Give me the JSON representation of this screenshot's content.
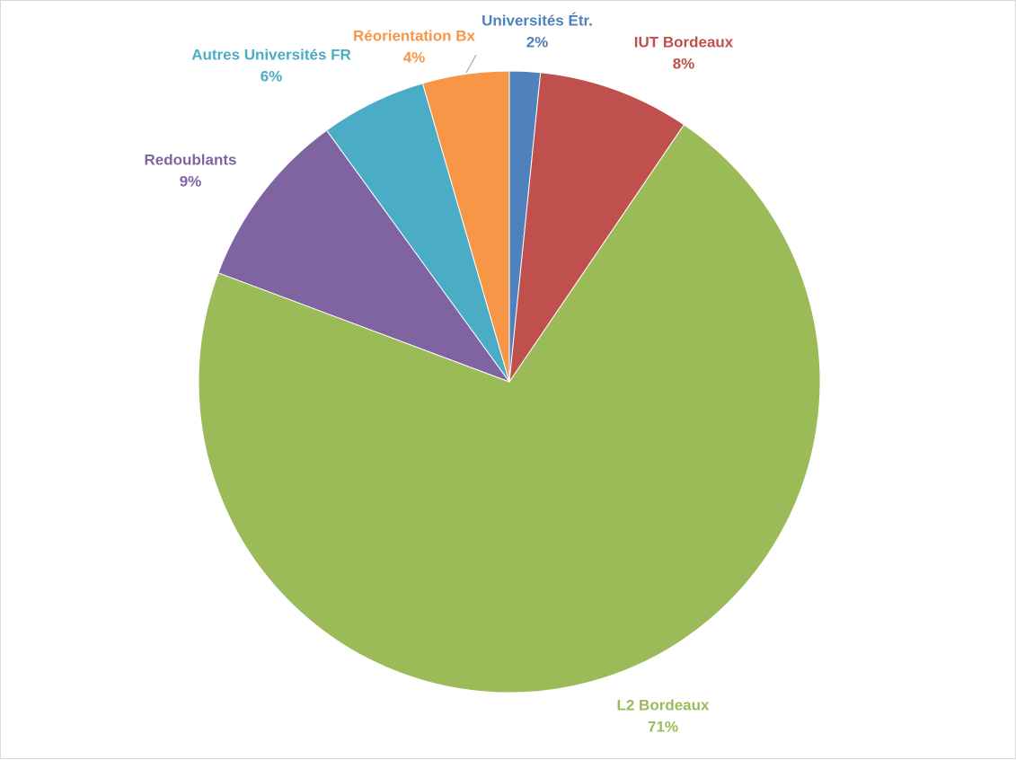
{
  "chart_data": {
    "type": "pie",
    "title": "",
    "start_angle_deg": 0,
    "direction": "clockwise",
    "legend": "none",
    "slices": [
      {
        "label": "Universités Étr.",
        "pct_label": "2%",
        "value": 1.6,
        "color": "#4f81bd",
        "text_color": "#4f81bd"
      },
      {
        "label": "IUT Bordeaux",
        "pct_label": "8%",
        "value": 7.9,
        "color": "#c0504d",
        "text_color": "#c0504d"
      },
      {
        "label": "L2 Bordeaux",
        "pct_label": "71%",
        "value": 71.2,
        "color": "#9bbb59",
        "text_color": "#9bbb59"
      },
      {
        "label": "Redoublants",
        "pct_label": "9%",
        "value": 9.3,
        "color": "#8064a2",
        "text_color": "#8064a2"
      },
      {
        "label": "Autres Universités FR",
        "pct_label": "6%",
        "value": 5.5,
        "color": "#4bacc6",
        "text_color": "#4bacc6"
      },
      {
        "label": "Réorientation Bx",
        "pct_label": "4%",
        "value": 4.5,
        "color": "#f79646",
        "text_color": "#f79646"
      }
    ]
  }
}
